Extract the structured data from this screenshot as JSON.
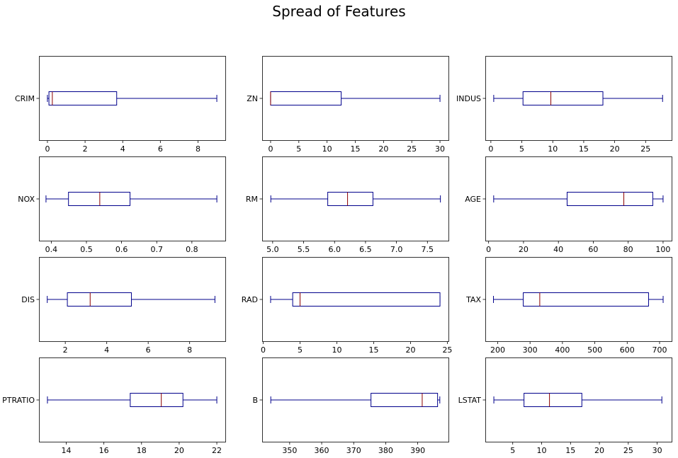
{
  "title": "Spread of Features",
  "colors": {
    "box": "#00008b",
    "median": "#8b0000",
    "axis": "#000000"
  },
  "chart_data": [
    {
      "type": "boxplot",
      "label": "CRIM",
      "xlim": [
        -0.45,
        9.45
      ],
      "ticks": [
        0,
        2,
        4,
        6,
        8
      ],
      "tick_labels": [
        "0",
        "2",
        "4",
        "6",
        "8"
      ],
      "whisker_low": 0.0,
      "q1": 0.08,
      "median": 0.26,
      "q3": 3.68,
      "whisker_high": 9.0
    },
    {
      "type": "boxplot",
      "label": "ZN",
      "xlim": [
        -1.5,
        31.5
      ],
      "ticks": [
        0,
        5,
        10,
        15,
        20,
        25,
        30
      ],
      "tick_labels": [
        "0",
        "5",
        "10",
        "15",
        "20",
        "25",
        "30"
      ],
      "whisker_low": 0,
      "q1": 0,
      "median": 0,
      "q3": 12.5,
      "whisker_high": 30
    },
    {
      "type": "boxplot",
      "label": "INDUS",
      "xlim": [
        -0.9,
        29.2
      ],
      "ticks": [
        0,
        5,
        10,
        15,
        20,
        25
      ],
      "tick_labels": [
        "0",
        "5",
        "10",
        "15",
        "20",
        "25"
      ],
      "whisker_low": 0.46,
      "q1": 5.19,
      "median": 9.69,
      "q3": 18.1,
      "whisker_high": 27.74
    },
    {
      "type": "boxplot",
      "label": "NOX",
      "xlim": [
        0.365,
        0.895
      ],
      "ticks": [
        0.4,
        0.5,
        0.6,
        0.7,
        0.8
      ],
      "tick_labels": [
        "0.4",
        "0.5",
        "0.6",
        "0.7",
        "0.8"
      ],
      "whisker_low": 0.385,
      "q1": 0.449,
      "median": 0.538,
      "q3": 0.624,
      "whisker_high": 0.871
    },
    {
      "type": "boxplot",
      "label": "RM",
      "xlim": [
        4.83,
        7.84
      ],
      "ticks": [
        5.0,
        5.5,
        6.0,
        6.5,
        7.0,
        7.5
      ],
      "tick_labels": [
        "5.0",
        "5.5",
        "6.0",
        "6.5",
        "7.0",
        "7.5"
      ],
      "whisker_low": 4.97,
      "q1": 5.89,
      "median": 6.21,
      "q3": 6.62,
      "whisker_high": 7.71
    },
    {
      "type": "boxplot",
      "label": "AGE",
      "xlim": [
        -1.9,
        104.9
      ],
      "ticks": [
        0,
        20,
        40,
        60,
        80,
        100
      ],
      "tick_labels": [
        "0",
        "20",
        "40",
        "60",
        "80",
        "100"
      ],
      "whisker_low": 2.9,
      "q1": 45.0,
      "median": 77.5,
      "q3": 94.1,
      "whisker_high": 100
    },
    {
      "type": "boxplot",
      "label": "DIS",
      "xlim": [
        0.73,
        9.72
      ],
      "ticks": [
        2,
        4,
        6,
        8
      ],
      "tick_labels": [
        "2",
        "4",
        "6",
        "8"
      ],
      "whisker_low": 1.13,
      "q1": 2.1,
      "median": 3.2,
      "q3": 5.19,
      "whisker_high": 9.22
    },
    {
      "type": "boxplot",
      "label": "RAD",
      "xlim": [
        -0.15,
        25.15
      ],
      "ticks": [
        0,
        5,
        10,
        15,
        20,
        25
      ],
      "tick_labels": [
        "0",
        "5",
        "10",
        "15",
        "20",
        "25"
      ],
      "whisker_low": 1,
      "q1": 4,
      "median": 5,
      "q3": 24,
      "whisker_high": 24
    },
    {
      "type": "boxplot",
      "label": "TAX",
      "xlim": [
        161.8,
        737.2
      ],
      "ticks": [
        200,
        300,
        400,
        500,
        600,
        700
      ],
      "tick_labels": [
        "200",
        "300",
        "400",
        "500",
        "600",
        "700"
      ],
      "whisker_low": 187,
      "q1": 279,
      "median": 330,
      "q3": 666,
      "whisker_high": 711
    },
    {
      "type": "boxplot",
      "label": "PTRATIO",
      "xlim": [
        12.55,
        22.45
      ],
      "ticks": [
        14,
        16,
        18,
        20,
        22
      ],
      "tick_labels": [
        "14",
        "16",
        "18",
        "20",
        "22"
      ],
      "whisker_low": 13.0,
      "q1": 17.4,
      "median": 19.05,
      "q3": 20.2,
      "whisker_high": 22.0
    },
    {
      "type": "boxplot",
      "label": "B",
      "xlim": [
        341.4,
        399.6
      ],
      "ticks": [
        350,
        360,
        370,
        380,
        390
      ],
      "tick_labels": [
        "350",
        "360",
        "370",
        "380",
        "390"
      ],
      "whisker_low": 344.1,
      "q1": 375.4,
      "median": 391.4,
      "q3": 396.2,
      "whisker_high": 396.9
    },
    {
      "type": "boxplot",
      "label": "LSTAT",
      "xlim": [
        0.25,
        32.5
      ],
      "ticks": [
        5,
        10,
        15,
        20,
        25,
        30
      ],
      "tick_labels": [
        "5",
        "10",
        "15",
        "20",
        "25",
        "30"
      ],
      "whisker_low": 1.73,
      "q1": 6.95,
      "median": 11.36,
      "q3": 16.96,
      "whisker_high": 30.81
    }
  ]
}
